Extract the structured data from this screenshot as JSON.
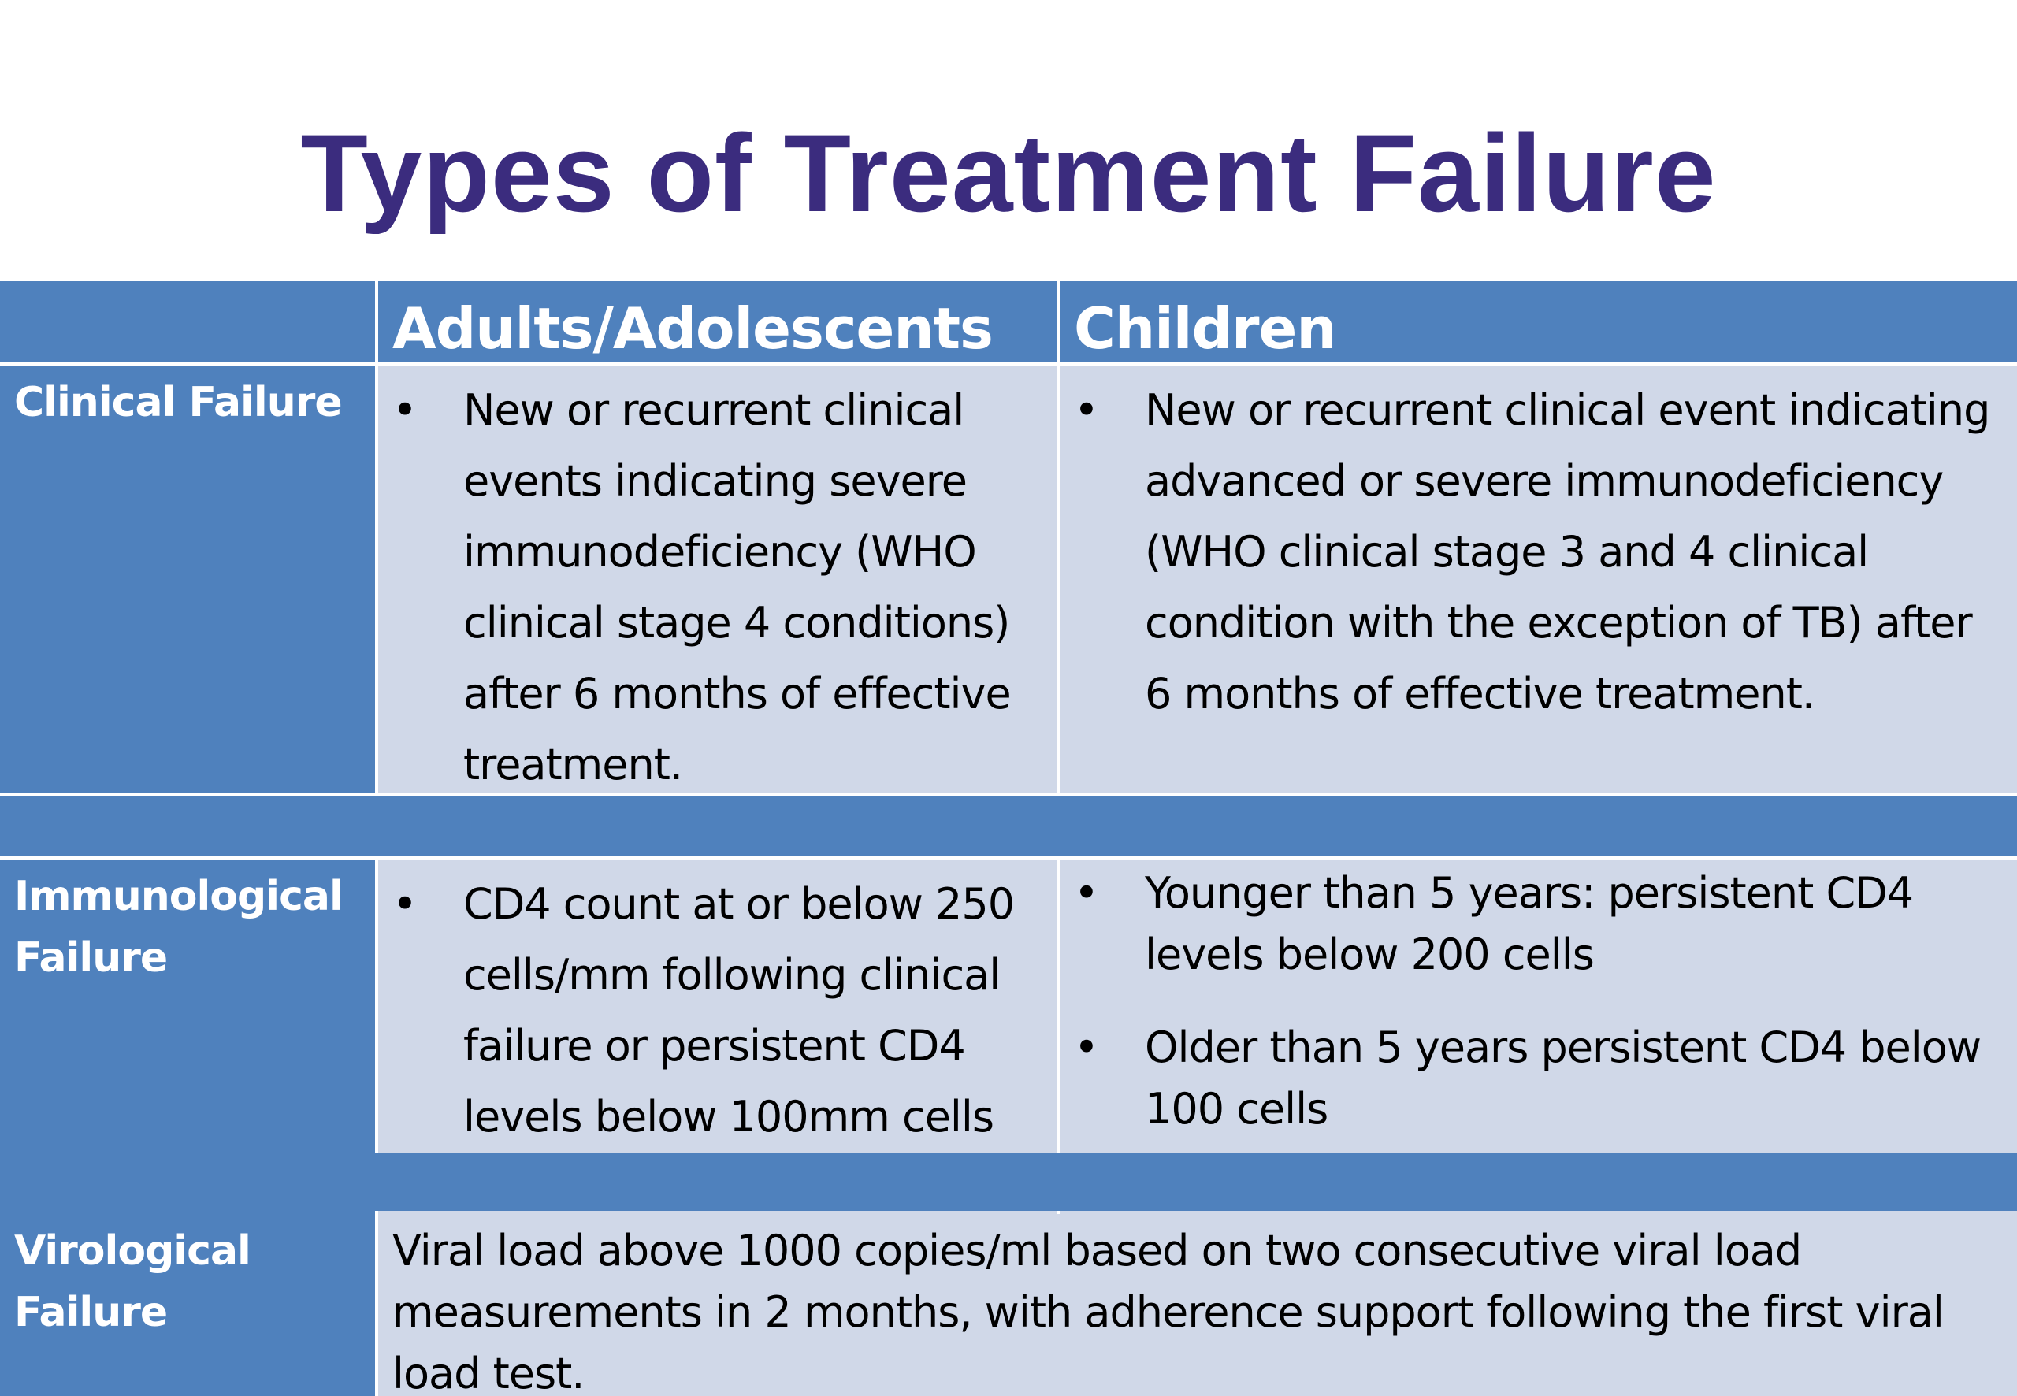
{
  "slide": {
    "title": "Types of Treatment Failure"
  },
  "table": {
    "headers": {
      "corner": "",
      "adults": "Adults/Adolescents",
      "children": "Children"
    },
    "rows": [
      {
        "label": "Clinical Failure",
        "adults": [
          "New or recurrent clinical events indicating severe immunodeficiency (WHO clinical stage 4 conditions) after 6 months of effective treatment."
        ],
        "children": [
          "New or recurrent clinical event indicating advanced or severe immunodeficiency (WHO clinical stage 3 and 4 clinical condition with the exception of TB) after 6 months of effective treatment."
        ]
      },
      {
        "label": "Immunological Failure",
        "adults": [
          "CD4 count at or below 250 cells/mm following clinical failure or persistent CD4 levels below 100mm cells"
        ],
        "children": [
          "Younger than 5 years: persistent CD4 levels below 200 cells",
          "Older than 5 years persistent CD4 below 100 cells"
        ]
      },
      {
        "label": "Virological Failure",
        "combined": "Viral load above 1000 copies/ml based on two consecutive viral load measurements in 2 months, with adherence support following the first viral load test."
      }
    ],
    "bullet_symbol": "•"
  },
  "colors": {
    "title": "#3b2c7e",
    "header_fill": "#4f81bd",
    "body_fill": "#d0d8e8",
    "divider": "#ffffff"
  }
}
